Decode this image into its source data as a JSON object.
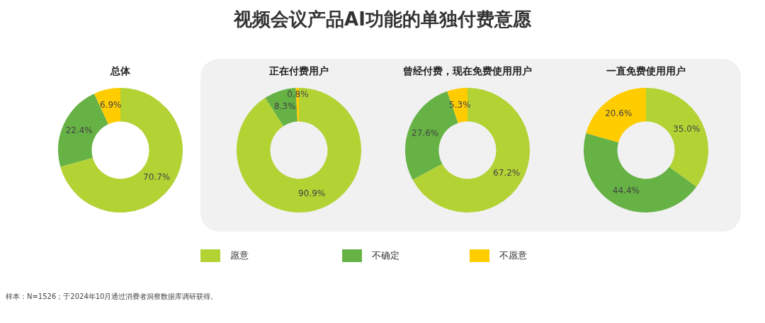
{
  "chart_data": [
    {
      "type": "other",
      "title": "视频会议产品AI功能的单独付费意愿",
      "annotations": [
        "样本：N=1526；于2024年10月通过消费者洞察数据库调研获得。"
      ]
    },
    {
      "type": "donut",
      "title": "总体",
      "categories": [
        "愿意",
        "不确定",
        "不愿意"
      ],
      "values": [
        70.7,
        22.4,
        6.9
      ],
      "colors": [
        "#b3d234",
        "#66b245",
        "#ffcc00"
      ],
      "value_labels": [
        "70.7%",
        "22.4%",
        "6.9%"
      ],
      "legend": "bottom"
    },
    {
      "type": "donut",
      "title": "正在付费用户",
      "categories": [
        null,
        null,
        null
      ],
      "values": [
        90.9,
        8.3,
        0.8
      ],
      "colors": [
        "#b3d234",
        "#66b245",
        "#ffcc00"
      ],
      "value_labels": [
        "90.9%",
        "8.3%",
        "0.8%"
      ]
    },
    {
      "type": "donut",
      "title": "曾经付费，现在免费使用用户",
      "categories": [
        null,
        null,
        null
      ],
      "values": [
        67.2,
        27.6,
        5.3
      ],
      "colors": [
        "#b3d234",
        "#66b245",
        "#ffcc00"
      ],
      "value_labels": [
        "67.2%",
        "27.6%",
        "5.3%"
      ]
    },
    {
      "type": "donut",
      "title": "一直免费使用用户",
      "categories": [
        null,
        null,
        null
      ],
      "values": [
        35.0,
        44.4,
        20.6
      ],
      "colors": [
        "#b3d234",
        "#66b245",
        "#ffcc00"
      ],
      "value_labels": [
        "35.0%",
        "44.4%",
        "20.6%"
      ]
    }
  ]
}
